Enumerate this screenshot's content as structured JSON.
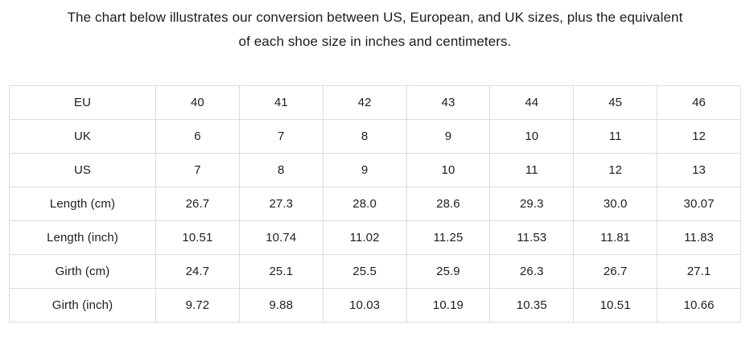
{
  "title": {
    "text": "The chart below illustrates our conversion between US, European, and UK sizes, plus the equivalent of each shoe size in inches and centimeters.",
    "lines": [
      "The chart below illustrates our conversion between US, European, and UK sizes, plus the equivalent",
      "of each shoe size in inches and centimeters."
    ]
  },
  "chart_data": {
    "type": "table",
    "title": "The chart below illustrates our conversion between US, European, and UK sizes, plus the equivalent of each shoe size in inches and centimeters.",
    "rows": [
      {
        "label": "EU",
        "values": [
          "40",
          "41",
          "42",
          "43",
          "44",
          "45",
          "46"
        ]
      },
      {
        "label": "UK",
        "values": [
          "6",
          "7",
          "8",
          "9",
          "10",
          "11",
          "12"
        ]
      },
      {
        "label": "US",
        "values": [
          "7",
          "8",
          "9",
          "10",
          "11",
          "12",
          "13"
        ]
      },
      {
        "label": "Length (cm)",
        "values": [
          "26.7",
          "27.3",
          "28.0",
          "28.6",
          "29.3",
          "30.0",
          "30.07"
        ]
      },
      {
        "label": "Length (inch)",
        "values": [
          "10.51",
          "10.74",
          "11.02",
          "11.25",
          "11.53",
          "11.81",
          "11.83"
        ]
      },
      {
        "label": "Girth (cm)",
        "values": [
          "24.7",
          "25.1",
          "25.5",
          "25.9",
          "26.3",
          "26.7",
          "27.1"
        ]
      },
      {
        "label": "Girth (inch)",
        "values": [
          "9.72",
          "9.88",
          "10.03",
          "10.19",
          "10.35",
          "10.51",
          "10.66"
        ]
      }
    ]
  },
  "colors": {
    "background": "#ffffff",
    "text": "#1d1d1d",
    "table_border": "#dcdcdc"
  }
}
